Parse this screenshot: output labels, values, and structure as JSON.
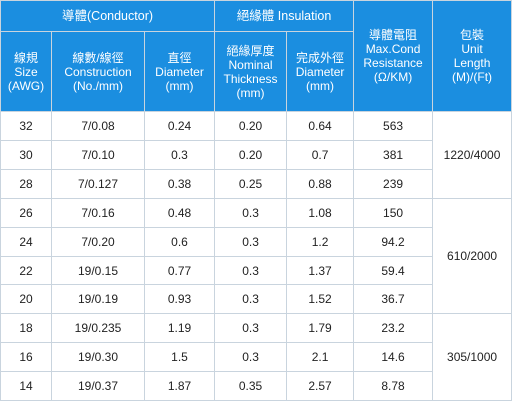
{
  "header": {
    "conductor_group": "導體(Conductor)",
    "insulation_group": "絕緣體 Insulation",
    "resistance": [
      "導體電阻",
      "Max.Cond",
      "Resistance",
      "(Ω/KM)"
    ],
    "packing": [
      "包裝",
      "Unit",
      "Length",
      "(M)/(Ft)"
    ],
    "size": [
      "線規",
      "Size",
      "(AWG)"
    ],
    "construction": [
      "線數/線徑",
      "Construction",
      "(No./mm)"
    ],
    "conductor_diameter": [
      "直徑",
      "Diameter",
      "(mm)"
    ],
    "nominal_thickness": [
      "絕緣厚度",
      "Nominal",
      "Thickness",
      "(mm)"
    ],
    "insulation_diameter": [
      "完成外徑",
      "Diameter",
      "(mm)"
    ]
  },
  "rows": [
    {
      "size": "32",
      "construction": "7/0.08",
      "cond_dia": "0.24",
      "thickness": "0.20",
      "ins_dia": "0.64",
      "resistance": "563"
    },
    {
      "size": "30",
      "construction": "7/0.10",
      "cond_dia": "0.3",
      "thickness": "0.20",
      "ins_dia": "0.7",
      "resistance": "381"
    },
    {
      "size": "28",
      "construction": "7/0.127",
      "cond_dia": "0.38",
      "thickness": "0.25",
      "ins_dia": "0.88",
      "resistance": "239"
    },
    {
      "size": "26",
      "construction": "7/0.16",
      "cond_dia": "0.48",
      "thickness": "0.3",
      "ins_dia": "1.08",
      "resistance": "150"
    },
    {
      "size": "24",
      "construction": "7/0.20",
      "cond_dia": "0.6",
      "thickness": "0.3",
      "ins_dia": "1.2",
      "resistance": "94.2"
    },
    {
      "size": "22",
      "construction": "19/0.15",
      "cond_dia": "0.77",
      "thickness": "0.3",
      "ins_dia": "1.37",
      "resistance": "59.4"
    },
    {
      "size": "20",
      "construction": "19/0.19",
      "cond_dia": "0.93",
      "thickness": "0.3",
      "ins_dia": "1.52",
      "resistance": "36.7"
    },
    {
      "size": "18",
      "construction": "19/0.235",
      "cond_dia": "1.19",
      "thickness": "0.3",
      "ins_dia": "1.79",
      "resistance": "23.2"
    },
    {
      "size": "16",
      "construction": "19/0.30",
      "cond_dia": "1.5",
      "thickness": "0.3",
      "ins_dia": "2.1",
      "resistance": "14.6"
    },
    {
      "size": "14",
      "construction": "19/0.37",
      "cond_dia": "1.87",
      "thickness": "0.35",
      "ins_dia": "2.57",
      "resistance": "8.78"
    }
  ],
  "packing": [
    "1220/4000",
    "610/2000",
    "305/1000"
  ],
  "colors": {
    "header_bg": "#1b8ee0",
    "header_text": "#ffffff",
    "border": "#c9d4de"
  }
}
